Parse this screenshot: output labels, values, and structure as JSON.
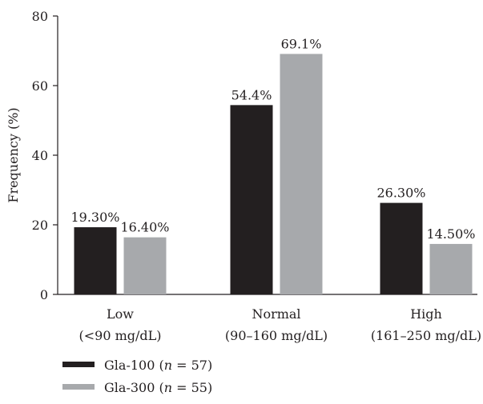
{
  "chart_data": {
    "type": "bar",
    "ylabel": "Frequency (%)",
    "ylim": [
      0,
      80
    ],
    "yticks": [
      "0",
      "20",
      "40",
      "60",
      "80"
    ],
    "categories": [
      {
        "line1": "Low",
        "line2": "(<90 mg/dL)"
      },
      {
        "line1": "Normal",
        "line2": "(90–160 mg/dL)"
      },
      {
        "line1": "High",
        "line2": "(161–250 mg/dL)"
      }
    ],
    "series": [
      {
        "name": "Gla-100",
        "n_label": "n = 57",
        "color": "#231f20",
        "values": [
          19.3,
          54.4,
          26.3
        ],
        "labels": [
          "19.30%",
          "54.4%",
          "26.30%"
        ]
      },
      {
        "name": "Gla-300",
        "n_label": "n = 55",
        "color": "#a7a9ac",
        "values": [
          16.4,
          69.1,
          14.5
        ],
        "labels": [
          "16.40%",
          "69.1%",
          "14.50%"
        ]
      }
    ],
    "grid": false,
    "legend_position": "bottom-left"
  }
}
